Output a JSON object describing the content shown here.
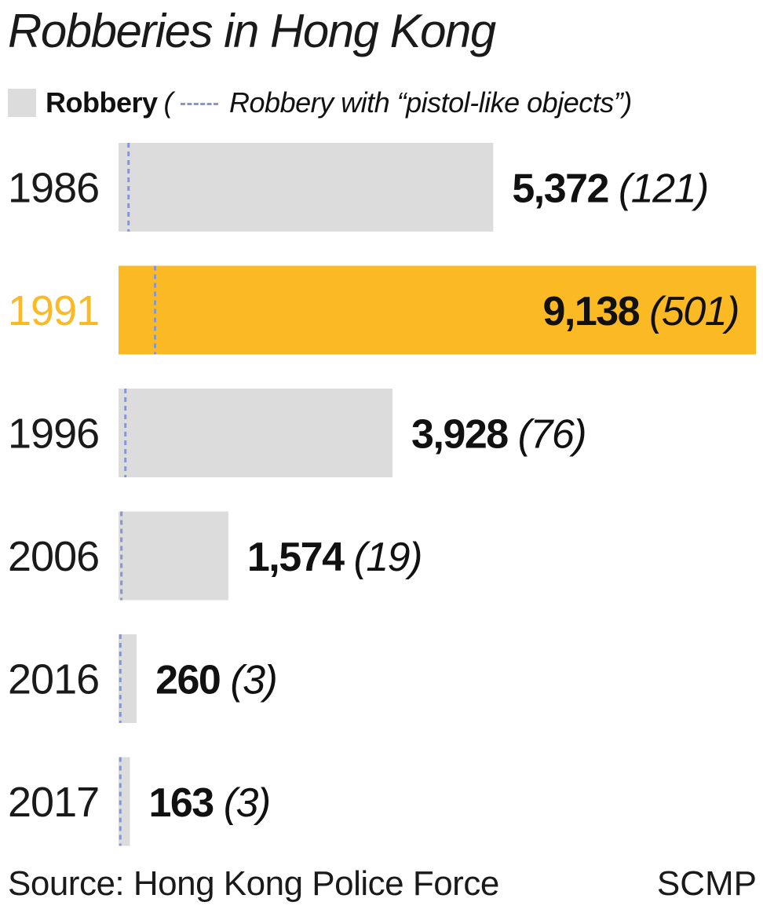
{
  "title": "Robberies in Hong Kong",
  "legend": {
    "main_label": "Robbery",
    "open_paren": "(",
    "sub_label": "Robbery with “pistol-like objects”)"
  },
  "colors": {
    "bar": "#dcdcdc",
    "highlight": "#fbb924",
    "dash": "#8895cf",
    "text": "#111111"
  },
  "chart_data": {
    "type": "bar",
    "orientation": "horizontal",
    "categories": [
      "1986",
      "1991",
      "1996",
      "2006",
      "2016",
      "2017"
    ],
    "series": [
      {
        "name": "Robbery",
        "values": [
          5372,
          9138,
          3928,
          1574,
          260,
          163
        ]
      },
      {
        "name": "Robbery with “pistol-like objects”",
        "values": [
          121,
          501,
          76,
          19,
          3,
          3
        ]
      }
    ],
    "value_labels": [
      "5,372",
      "9,138",
      "3,928",
      "1,574",
      "260",
      "163"
    ],
    "sub_labels": [
      "(121)",
      "(501)",
      "(76)",
      "(19)",
      "(3)",
      "(3)"
    ],
    "highlighted_category": "1991",
    "xlim": [
      0,
      9138
    ],
    "grid": false
  },
  "source": "Source: Hong Kong Police Force",
  "credit": "SCMP"
}
